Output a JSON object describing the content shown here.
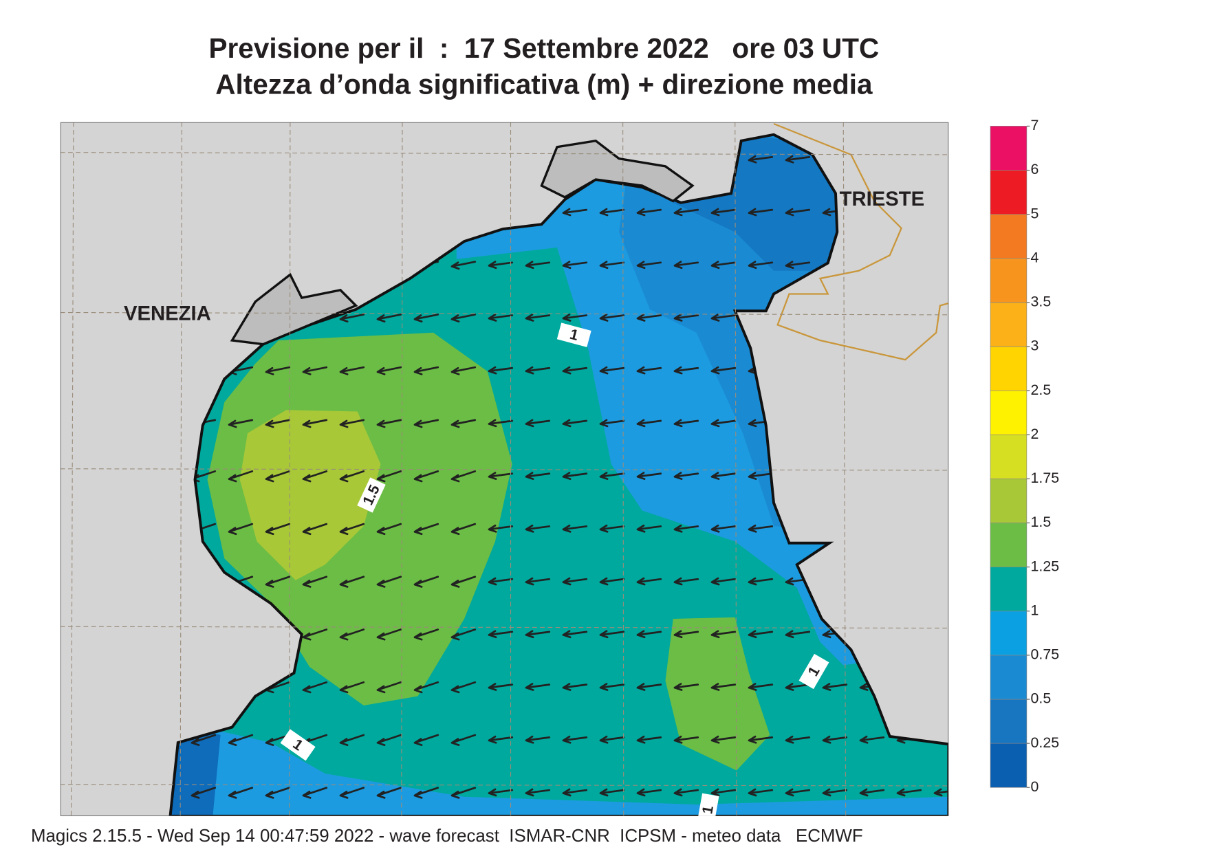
{
  "title": "Previsione per il  :  17 Settembre 2022   ore 03 UTC",
  "subtitle": "Altezza d’onda significativa (m) + direzione media",
  "places": [
    "VENEZIA",
    "TRIESTE"
  ],
  "contour_labels": [
    1.5,
    1,
    1,
    1,
    1
  ],
  "colorbar": {
    "ticks": [
      0,
      0.25,
      0.5,
      0.75,
      1,
      1.25,
      1.5,
      1.75,
      2,
      2.5,
      3,
      3.5,
      4,
      5,
      6,
      7
    ],
    "colors": [
      "#0a5fb0",
      "#1876c0",
      "#1a8bd3",
      "#0aa0e2",
      "#00a99d",
      "#6cbd45",
      "#a8c838",
      "#d7df23",
      "#fff200",
      "#ffd400",
      "#fbb117",
      "#f7941d",
      "#f37a21",
      "#ed1c24",
      "#ec1064"
    ]
  },
  "footer": "Magics 2.15.5 - Wed Sep 14 00:47:59 2022 - wave forecast  ISMAR-CNR  ICPSM - meteo data   ECMWF"
}
